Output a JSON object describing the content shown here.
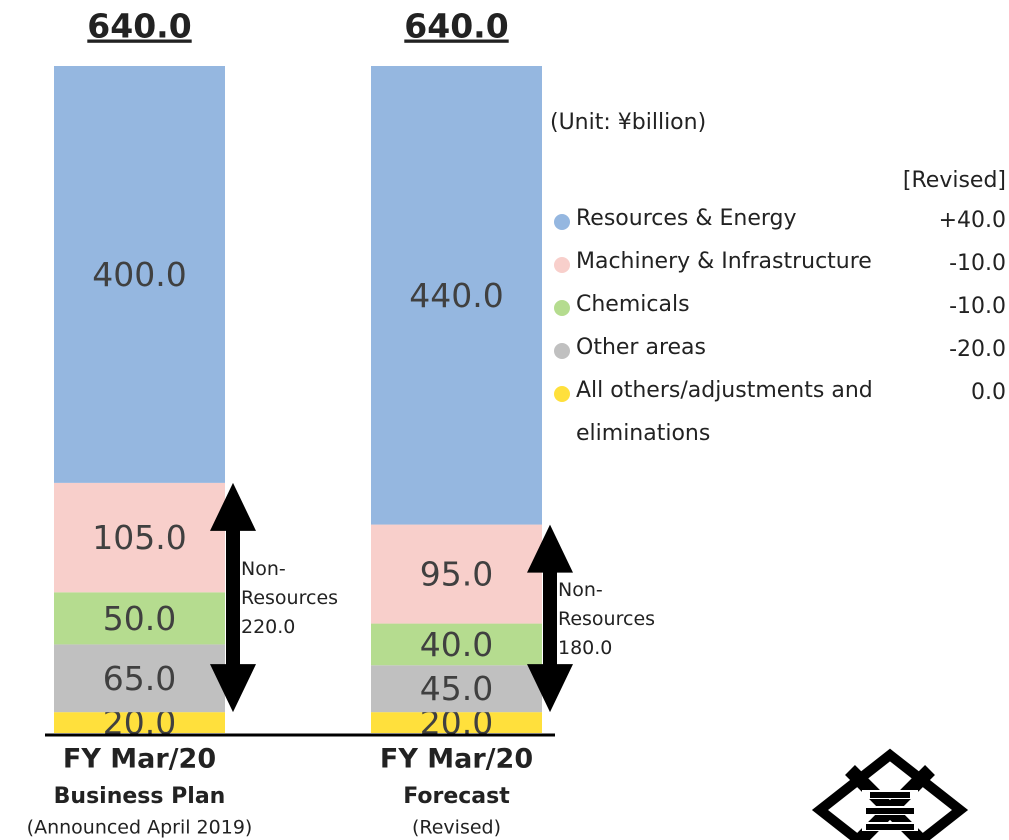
{
  "chart_data": {
    "type": "stacked_bar",
    "categories": [
      [
        "FY Mar/20",
        "Business Plan",
        "(Announced April 2019)"
      ],
      [
        "FY Mar/20",
        "Forecast",
        "(Revised)"
      ]
    ],
    "series": [
      {
        "name": "Resources & Energy",
        "color": "#95b7e0",
        "values": [
          400,
          440
        ],
        "value_labels": [
          "400.0",
          "440.0"
        ],
        "change": 40,
        "change_label": "+40.0"
      },
      {
        "name": "Machinery & Infrastructure",
        "color": "#f8cfcb",
        "values": [
          105,
          95
        ],
        "value_labels": [
          "105.0",
          "95.0"
        ],
        "change": -10,
        "change_label": "-10.0"
      },
      {
        "name": "Chemicals",
        "color": "#b5dc8f",
        "values": [
          50,
          40
        ],
        "value_labels": [
          "50.0",
          "40.0"
        ],
        "change": -10,
        "change_label": "-10.0"
      },
      {
        "name": "Other areas",
        "color": "#c0c0c0",
        "values": [
          65,
          45
        ],
        "value_labels": [
          "65.0",
          "45.0"
        ],
        "change": -20,
        "change_label": "-20.0"
      },
      {
        "name": "All others/adjustments and eliminations",
        "color": "#ffe03c",
        "values": [
          20,
          20
        ],
        "value_labels": [
          "20.0",
          "20.0"
        ],
        "change": 0,
        "change_label": "0.0"
      }
    ],
    "totals": [
      640,
      640
    ],
    "total_labels": [
      "640.0",
      "640.0"
    ],
    "non_resources": [
      220,
      180
    ],
    "non_resources_title": [
      "Non-",
      "Resources"
    ],
    "non_resources_labels": [
      "220.0",
      "180.0"
    ],
    "unit": "(Unit: ¥billion)",
    "legend_header": "[Revised]",
    "ylim": [
      0,
      640
    ]
  }
}
